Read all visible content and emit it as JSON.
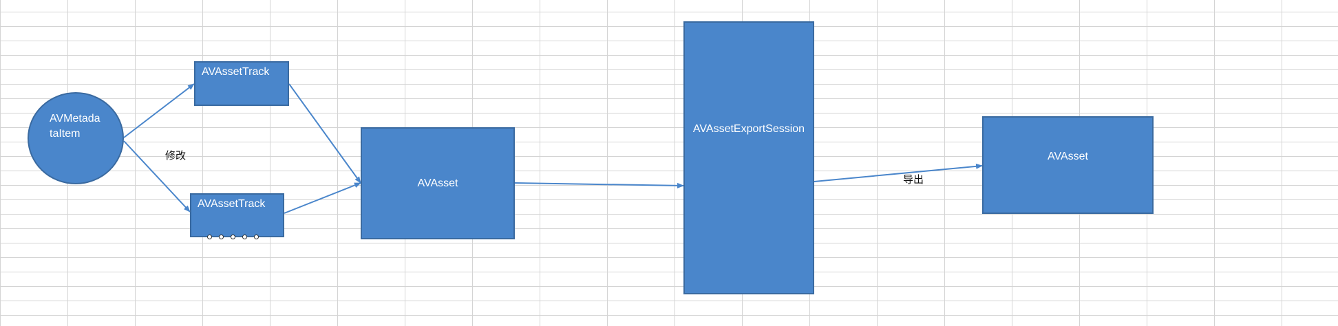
{
  "nodes": {
    "metadata_item": {
      "label": "AVMetadataItem"
    },
    "track_top": {
      "label": "AVAssetTrack"
    },
    "track_bottom": {
      "label": "AVAssetTrack"
    },
    "asset_source": {
      "label": "AVAsset"
    },
    "export_session": {
      "label": "AVAssetExportSession"
    },
    "asset_output": {
      "label": "AVAsset"
    }
  },
  "annotations": {
    "modify": "修改",
    "export": "导出"
  },
  "colors": {
    "shape_fill": "#4a86cb",
    "shape_border": "#3a6aa0",
    "arrow": "#4a86cb",
    "grid": "#d4d4d4"
  }
}
